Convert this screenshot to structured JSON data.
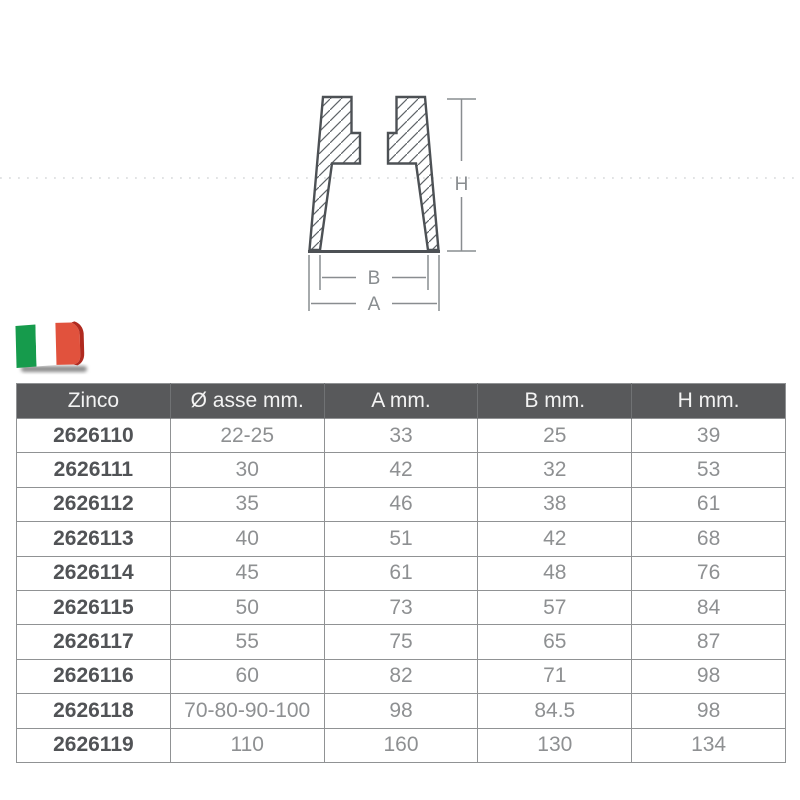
{
  "drawing": {
    "labels": {
      "h": "H",
      "b": "B",
      "a": "A"
    },
    "colors": {
      "outline": "#4d5155",
      "hatch": "#5e6367",
      "dimension": "#898d90",
      "dotted_rule": "#d8dadc"
    }
  },
  "flag": {
    "country": "Italy",
    "colors": {
      "green": "#169b4c",
      "white": "#ffffff",
      "red": "#e1523d",
      "fold_red": "#b02a1f"
    }
  },
  "table": {
    "header": {
      "bg": "#58595b",
      "text_color": "#f3f3f3",
      "columns": [
        "Zinco",
        "Ø asse mm.",
        "A mm.",
        "B mm.",
        "H mm."
      ]
    },
    "rows": [
      {
        "code": "2626110",
        "shaft": "22-25",
        "a": "33",
        "b": "25",
        "h": "39"
      },
      {
        "code": "2626111",
        "shaft": "30",
        "a": "42",
        "b": "32",
        "h": "53"
      },
      {
        "code": "2626112",
        "shaft": "35",
        "a": "46",
        "b": "38",
        "h": "61"
      },
      {
        "code": "2626113",
        "shaft": "40",
        "a": "51",
        "b": "42",
        "h": "68"
      },
      {
        "code": "2626114",
        "shaft": "45",
        "a": "61",
        "b": "48",
        "h": "76"
      },
      {
        "code": "2626115",
        "shaft": "50",
        "a": "73",
        "b": "57",
        "h": "84"
      },
      {
        "code": "2626117",
        "shaft": "55",
        "a": "75",
        "b": "65",
        "h": "87"
      },
      {
        "code": "2626116",
        "shaft": "60",
        "a": "82",
        "b": "71",
        "h": "98"
      },
      {
        "code": "2626118",
        "shaft": "70-80-90-100",
        "a": "98",
        "b": "84.5",
        "h": "98"
      },
      {
        "code": "2626119",
        "shaft": "110",
        "a": "160",
        "b": "130",
        "h": "134"
      }
    ]
  }
}
